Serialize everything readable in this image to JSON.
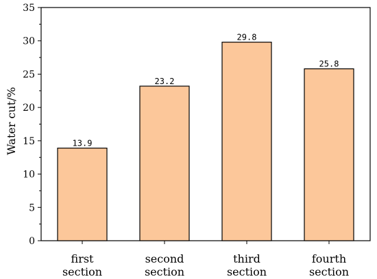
{
  "chart_data": {
    "type": "bar",
    "categories": [
      [
        "first",
        "section"
      ],
      [
        "second",
        "section"
      ],
      [
        "third",
        "section"
      ],
      [
        "fourth",
        "section"
      ]
    ],
    "values": [
      13.9,
      23.2,
      29.8,
      25.8
    ],
    "data_labels": [
      "13.9",
      "23.2",
      "29.8",
      "25.8"
    ],
    "title": "",
    "xlabel": "",
    "ylabel": "Water cut/%",
    "ylim": [
      0,
      35
    ],
    "yticks": [
      "0",
      "5",
      "10",
      "15",
      "20",
      "25",
      "30",
      "35"
    ],
    "grid": false,
    "legend": "none",
    "bar_color": "#FCC79A",
    "bar_edge_color": "#000000"
  }
}
